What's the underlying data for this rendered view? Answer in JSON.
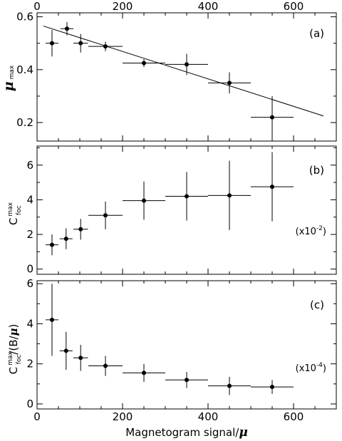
{
  "chart_data": [
    {
      "type": "scatter",
      "panel_label": "(a)",
      "ylabel": {
        "symbol": "μ",
        "subscript": "max"
      },
      "xlim": [
        0,
        700
      ],
      "ylim": [
        0.13,
        0.615
      ],
      "x_ticks": [
        "0",
        "200",
        "400",
        "600"
      ],
      "y_ticks": [
        "0.2",
        "0.4",
        "0.6"
      ],
      "points": [
        {
          "x": 35,
          "xerr": 15,
          "y": 0.5,
          "yerr": 0.05
        },
        {
          "x": 70,
          "xerr": 15,
          "y": 0.555,
          "yerr": 0.025
        },
        {
          "x": 102,
          "xerr": 17,
          "y": 0.5,
          "yerr": 0.035
        },
        {
          "x": 160,
          "xerr": 40,
          "y": 0.488,
          "yerr": 0.018
        },
        {
          "x": 250,
          "xerr": 50,
          "y": 0.425,
          "yerr": 0.015
        },
        {
          "x": 350,
          "xerr": 50,
          "y": 0.42,
          "yerr": 0.04
        },
        {
          "x": 450,
          "xerr": 50,
          "y": 0.35,
          "yerr": 0.04
        },
        {
          "x": 550,
          "xerr": 50,
          "y": 0.22,
          "yerr": 0.08
        }
      ],
      "fit_line": {
        "x": [
          15,
          670
        ],
        "y": [
          0.565,
          0.225
        ]
      }
    },
    {
      "type": "scatter",
      "panel_label": "(b)",
      "scale_factor": {
        "base": "(x10",
        "exponent": "-2",
        "close": ")"
      },
      "ylabel": {
        "main": "C",
        "superscript": "max",
        "subscript": "foc"
      },
      "xlim": [
        0,
        700
      ],
      "ylim": [
        -0.3,
        7.1
      ],
      "x_ticks": [
        "0",
        "200",
        "400",
        "600"
      ],
      "y_ticks": [
        "0",
        "2",
        "4",
        "6"
      ],
      "points": [
        {
          "x": 35,
          "xerr": 15,
          "y": 1.4,
          "yerr": 0.6
        },
        {
          "x": 68,
          "xerr": 15,
          "y": 1.75,
          "yerr": 0.6
        },
        {
          "x": 102,
          "xerr": 17,
          "y": 2.3,
          "yerr": 0.6
        },
        {
          "x": 160,
          "xerr": 40,
          "y": 3.1,
          "yerr": 0.8
        },
        {
          "x": 250,
          "xerr": 50,
          "y": 3.95,
          "yerr": 1.1
        },
        {
          "x": 350,
          "xerr": 50,
          "y": 4.2,
          "yerr": 1.4
        },
        {
          "x": 450,
          "xerr": 50,
          "y": 4.25,
          "yerr": 2.0
        },
        {
          "x": 550,
          "xerr": 50,
          "y": 4.75,
          "yerr": 2.0
        }
      ]
    },
    {
      "type": "scatter",
      "panel_label": "(c)",
      "scale_factor": {
        "base": "(x10",
        "exponent": "-4",
        "close": ")"
      },
      "ylabel": {
        "main": "C",
        "superscript": "max",
        "subscript": "foc",
        "suffix_open": "/(B/",
        "symbol": "μ",
        "suffix_close": ")"
      },
      "xlabel": {
        "text": "Magnetogram signal/",
        "symbol": "μ"
      },
      "xlim": [
        0,
        700
      ],
      "ylim": [
        -0.25,
        6.15
      ],
      "x_ticks": [
        "0",
        "200",
        "400",
        "600"
      ],
      "y_ticks": [
        "0",
        "2",
        "4",
        "6"
      ],
      "points": [
        {
          "x": 35,
          "xerr": 15,
          "y": 4.2,
          "yerr": 1.8
        },
        {
          "x": 68,
          "xerr": 15,
          "y": 2.65,
          "yerr": 0.95
        },
        {
          "x": 102,
          "xerr": 17,
          "y": 2.3,
          "yerr": 0.65
        },
        {
          "x": 160,
          "xerr": 40,
          "y": 1.9,
          "yerr": 0.5
        },
        {
          "x": 250,
          "xerr": 50,
          "y": 1.55,
          "yerr": 0.45
        },
        {
          "x": 350,
          "xerr": 50,
          "y": 1.2,
          "yerr": 0.4
        },
        {
          "x": 450,
          "xerr": 50,
          "y": 0.9,
          "yerr": 0.45
        },
        {
          "x": 550,
          "xerr": 50,
          "y": 0.85,
          "yerr": 0.35
        }
      ]
    }
  ]
}
